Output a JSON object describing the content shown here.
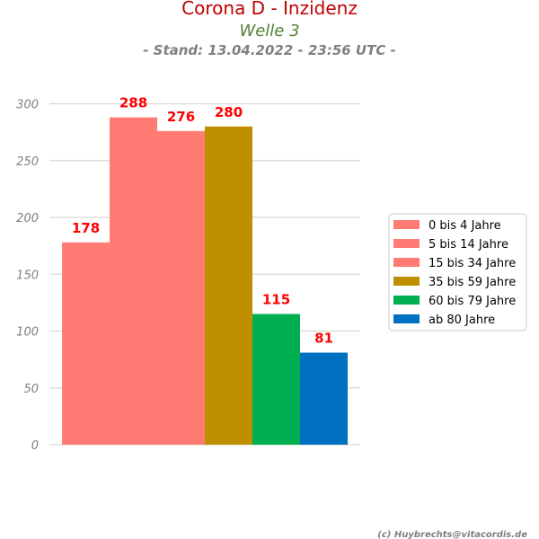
{
  "chart_data": {
    "type": "bar",
    "title": "Corona D - Inzidenz",
    "subtitle": "Welle 3",
    "stand": "- Stand: 13.04.2022 - 23:56 UTC -",
    "categories": [
      "0 bis 4 Jahre",
      "5 bis 14 Jahre",
      "15 bis 34 Jahre",
      "35 bis 59 Jahre",
      "60 bis 79 Jahre",
      "ab 80 Jahre"
    ],
    "values": [
      178,
      288,
      276,
      280,
      115,
      81
    ],
    "data_labels": [
      "178",
      "288",
      "276",
      "280",
      "115",
      "81"
    ],
    "colors": [
      "#ff7b74",
      "#ff7b74",
      "#ff7b74",
      "#bf8f00",
      "#00b050",
      "#0070c0"
    ],
    "ylim": [
      0,
      300
    ],
    "yticks": [
      0,
      50,
      100,
      150,
      200,
      250,
      300
    ],
    "ytick_labels": [
      "0",
      "50",
      "100",
      "150",
      "200",
      "250",
      "300"
    ],
    "grid": true,
    "legend_position": "right",
    "xlabel": "",
    "ylabel": ""
  },
  "footer": {
    "copyright": "(c) Huybrechts@vitacordis.de"
  }
}
